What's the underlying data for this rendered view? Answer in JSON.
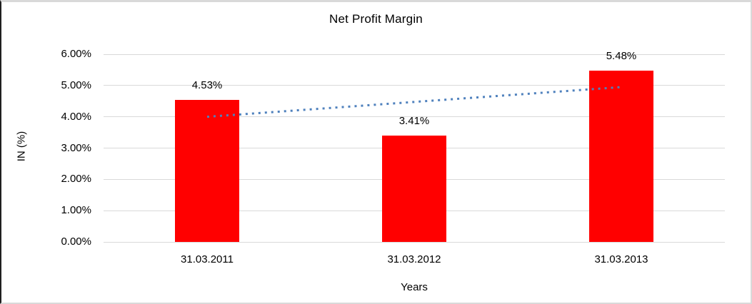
{
  "chart_data": {
    "type": "bar",
    "title": "Net Profit Margin",
    "xlabel": "Years",
    "ylabel": "IN (%)",
    "categories": [
      "31.03.2011",
      "31.03.2012",
      "31.03.2013"
    ],
    "values": [
      4.53,
      3.41,
      5.48
    ],
    "data_labels": [
      "4.53%",
      "3.41%",
      "5.48%"
    ],
    "ylim": [
      0,
      6
    ],
    "ytick_step": 1,
    "ytick_labels": [
      "0.00%",
      "1.00%",
      "2.00%",
      "3.00%",
      "4.00%",
      "5.00%",
      "6.00%"
    ],
    "grid": "horizontal",
    "legend": "none",
    "bar_color": "#ff0000",
    "gridline_color": "#d9d9d9",
    "trendline": {
      "type": "linear",
      "style": "dotted",
      "color": "#4f81bd",
      "start_value": 4.0,
      "end_value": 4.95
    }
  }
}
